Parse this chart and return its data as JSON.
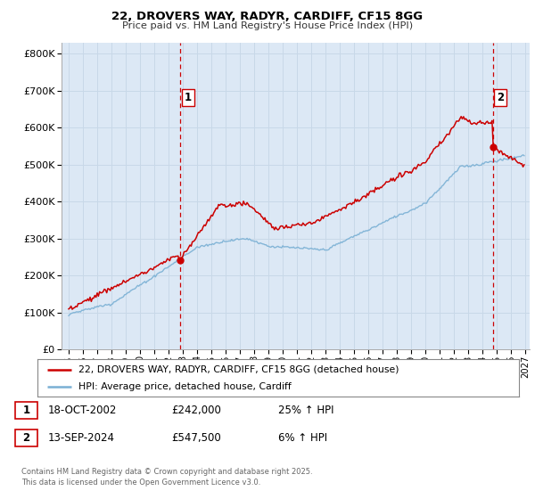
{
  "title1": "22, DROVERS WAY, RADYR, CARDIFF, CF15 8GG",
  "title2": "Price paid vs. HM Land Registry's House Price Index (HPI)",
  "legend_label1": "22, DROVERS WAY, RADYR, CARDIFF, CF15 8GG (detached house)",
  "legend_label2": "HPI: Average price, detached house, Cardiff",
  "transaction1_date": "18-OCT-2002",
  "transaction1_price": "£242,000",
  "transaction1_hpi": "25% ↑ HPI",
  "transaction2_date": "13-SEP-2024",
  "transaction2_price": "£547,500",
  "transaction2_hpi": "6% ↑ HPI",
  "vline1_x": 2002.79,
  "vline2_x": 2024.71,
  "marker1_x": 2002.79,
  "marker1_y": 242000,
  "marker2_x": 2024.71,
  "marker2_y": 547500,
  "grid_color": "#c8d8e8",
  "plot_bg_color": "#dce8f5",
  "vline_color": "#cc0000",
  "line1_color": "#cc0000",
  "line2_color": "#7ab0d4",
  "footer": "Contains HM Land Registry data © Crown copyright and database right 2025.\nThis data is licensed under the Open Government Licence v3.0.",
  "ylim": [
    0,
    830000
  ],
  "xlim_start": 1994.5,
  "xlim_end": 2027.3
}
